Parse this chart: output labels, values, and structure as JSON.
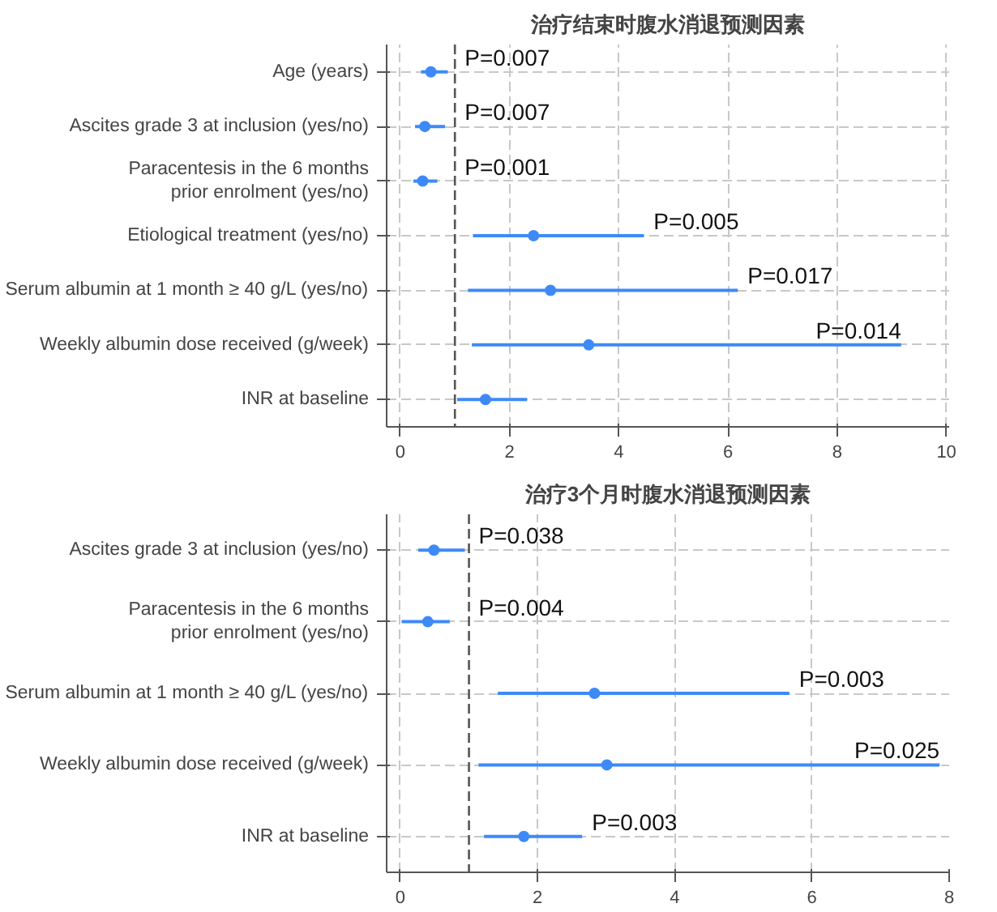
{
  "chart_data": [
    {
      "type": "scatter",
      "orientation": "horizontal",
      "title": "治疗结束时腹水消退预测因素",
      "categories": [
        "Age (years)",
        "Ascites grade 3 at inclusion (yes/no)",
        "Paracentesis in the 6 months\nprior enrolment (yes/no)",
        "Etiological treatment (yes/no)",
        "Serum albumin at 1 month ≥ 40 g/L (yes/no)",
        "Weekly albumin dose received (g/week)",
        "INR at baseline"
      ],
      "values": [
        0.56,
        0.45,
        0.41,
        2.44,
        2.75,
        3.45,
        1.56
      ],
      "errors": [
        [
          0.38,
          0.87
        ],
        [
          0.27,
          0.82
        ],
        [
          0.24,
          0.68
        ],
        [
          1.33,
          4.46
        ],
        [
          1.24,
          6.18
        ],
        [
          1.31,
          9.17
        ],
        [
          1.04,
          2.32
        ]
      ],
      "color": "#3d8af7",
      "marker": "circle",
      "grid": true,
      "legend": false,
      "xlim": [
        -0.25,
        10.05
      ],
      "xticks": [
        0,
        2,
        4,
        6,
        8,
        10
      ],
      "ref_lines": [
        {
          "axis": "x",
          "value": 1,
          "color": "#555555",
          "line_style": "dashed"
        }
      ],
      "annotations": [
        "P=0.007",
        "P=0.007",
        "P=0.001",
        "P=0.005",
        "P=0.017",
        "P=0.014"
      ]
    },
    {
      "type": "scatter",
      "orientation": "horizontal",
      "title": "治疗3个月时腹水消退预测因素",
      "categories": [
        "Ascites grade 3 at inclusion (yes/no)",
        "Paracentesis in the 6 months\nprior enrolment (yes/no)",
        "Serum albumin at 1 month ≥ 40 g/L (yes/no)",
        "Weekly albumin dose received (g/week)",
        "INR at baseline"
      ],
      "values": [
        0.49,
        0.4,
        2.83,
        3.01,
        1.8
      ],
      "errors": [
        [
          0.26,
          0.94
        ],
        [
          0.02,
          0.72
        ],
        [
          1.42,
          5.67
        ],
        [
          1.14,
          7.86
        ],
        [
          1.22,
          2.65
        ]
      ],
      "color": "#3d8af7",
      "marker": "circle",
      "grid": true,
      "legend": false,
      "xlim": [
        -0.2,
        8.0
      ],
      "xticks": [
        0,
        2,
        4,
        6,
        8
      ],
      "ref_lines": [
        {
          "axis": "x",
          "value": 1,
          "color": "#555555",
          "line_style": "dashed"
        }
      ],
      "annotations": [
        "P=0.038",
        "P=0.004",
        "P=0.003",
        "P=0.025",
        "P=0.003"
      ]
    }
  ]
}
